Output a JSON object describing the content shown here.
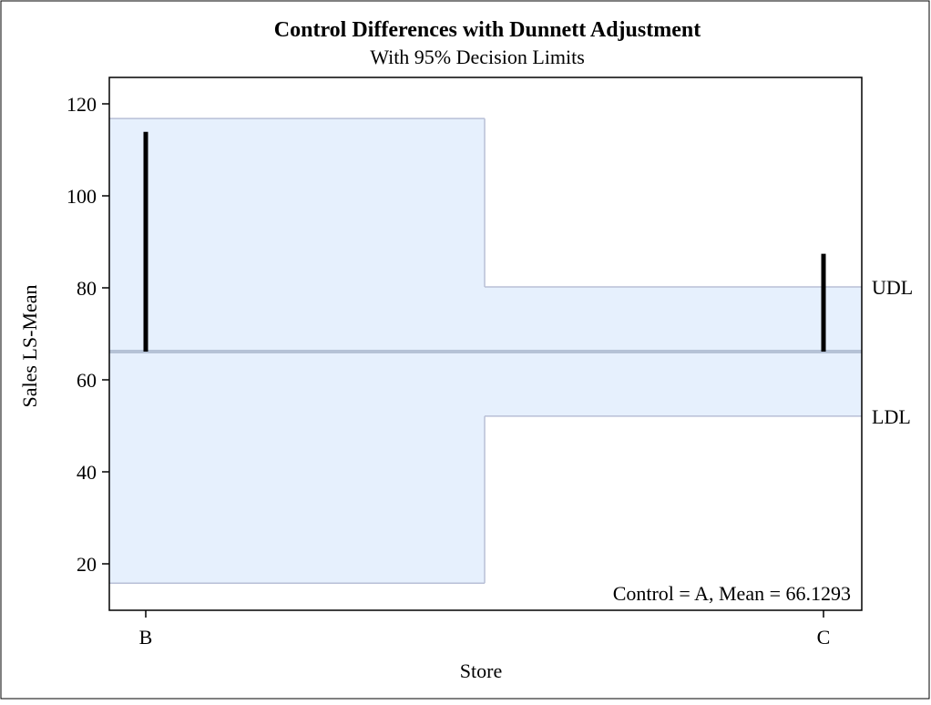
{
  "chart_data": {
    "type": "line",
    "title": "Control Differences with Dunnett Adjustment",
    "subtitle": "With 95% Decision Limits",
    "xlabel": "Store",
    "ylabel": "Sales LS-Mean",
    "ylim": [
      10,
      121
    ],
    "yticks": [
      20,
      40,
      60,
      80,
      100,
      120
    ],
    "categories": [
      "B",
      "C"
    ],
    "control_mean": 66.1293,
    "lsmeans": [
      113.9,
      87.4
    ],
    "decision_limits": [
      {
        "category": "B",
        "ldl": 15.8,
        "udl": 116.8
      },
      {
        "category": "C",
        "ldl": 52.1,
        "udl": 80.2
      }
    ],
    "limit_labels": {
      "udl": "UDL",
      "ldl": "LDL"
    },
    "annotation": "Control = A, Mean = 66.1293",
    "grid": false,
    "colors": {
      "band": "#e6f0fd",
      "band_edge": "#b8bfd6",
      "mean_line": "#b5c2d6",
      "bar": "#000000"
    }
  }
}
